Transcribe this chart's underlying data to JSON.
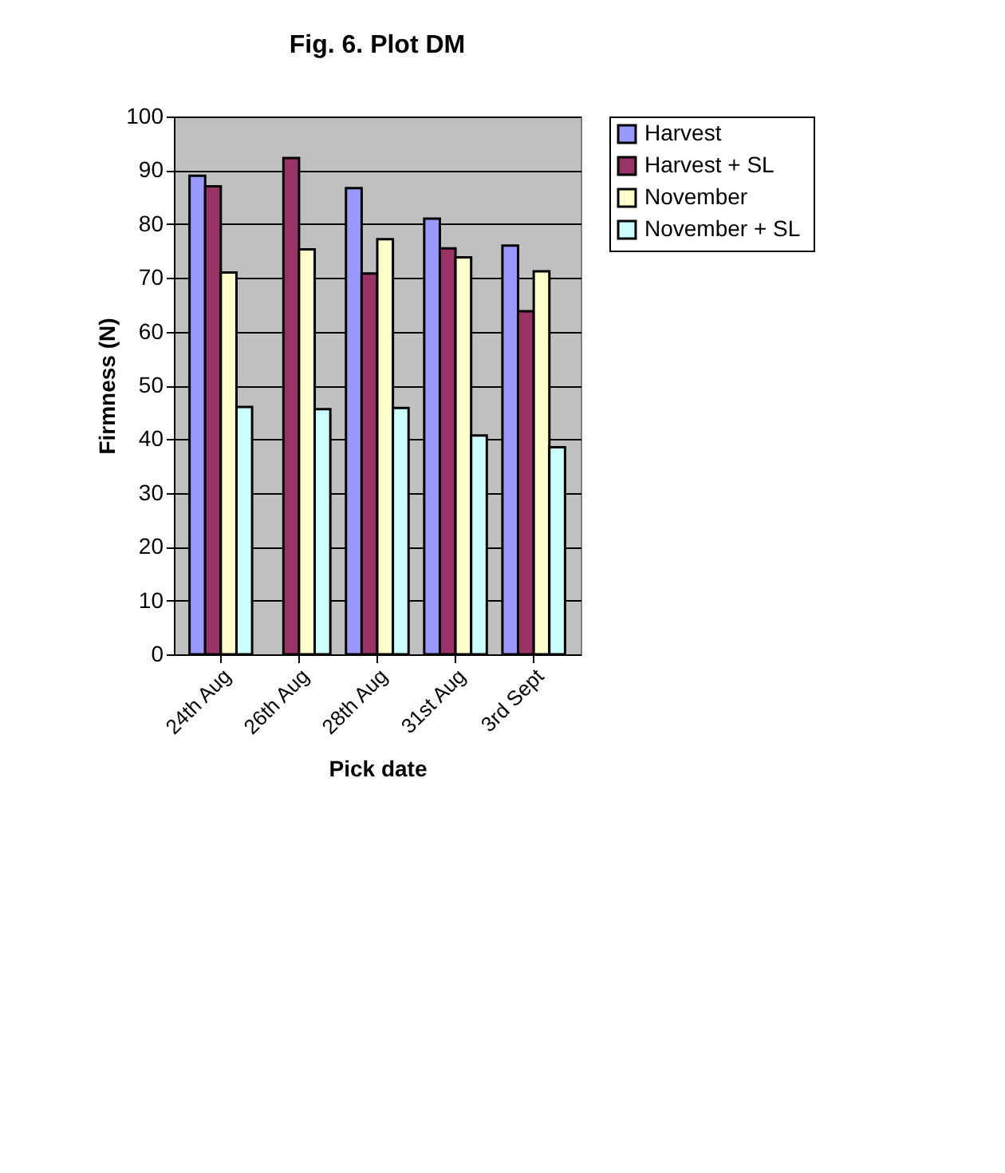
{
  "chart_data": {
    "type": "bar",
    "title": "Fig. 6. Plot DM",
    "xlabel": "Pick date",
    "ylabel": "Firmness (N)",
    "categories": [
      "24th Aug",
      "26th Aug",
      "28th Aug",
      "31st Aug",
      "3rd Sept"
    ],
    "series": [
      {
        "name": "Harvest",
        "color": "#9999ff",
        "values": [
          89,
          null,
          86.7,
          81,
          76
        ]
      },
      {
        "name": "Harvest + SL",
        "color": "#993366",
        "values": [
          87,
          92.3,
          70.8,
          75.5,
          63.8
        ]
      },
      {
        "name": "November",
        "color": "#ffffcc",
        "values": [
          71,
          75.3,
          77.2,
          73.8,
          71.2
        ]
      },
      {
        "name": "November  + SL",
        "color": "#ccffff",
        "values": [
          46,
          45.6,
          45.8,
          40.7,
          38.5
        ]
      }
    ],
    "ylim": [
      0,
      100
    ],
    "yticks": [
      0,
      10,
      20,
      30,
      40,
      50,
      60,
      70,
      80,
      90,
      100
    ],
    "grid": "y",
    "legend": "right"
  }
}
